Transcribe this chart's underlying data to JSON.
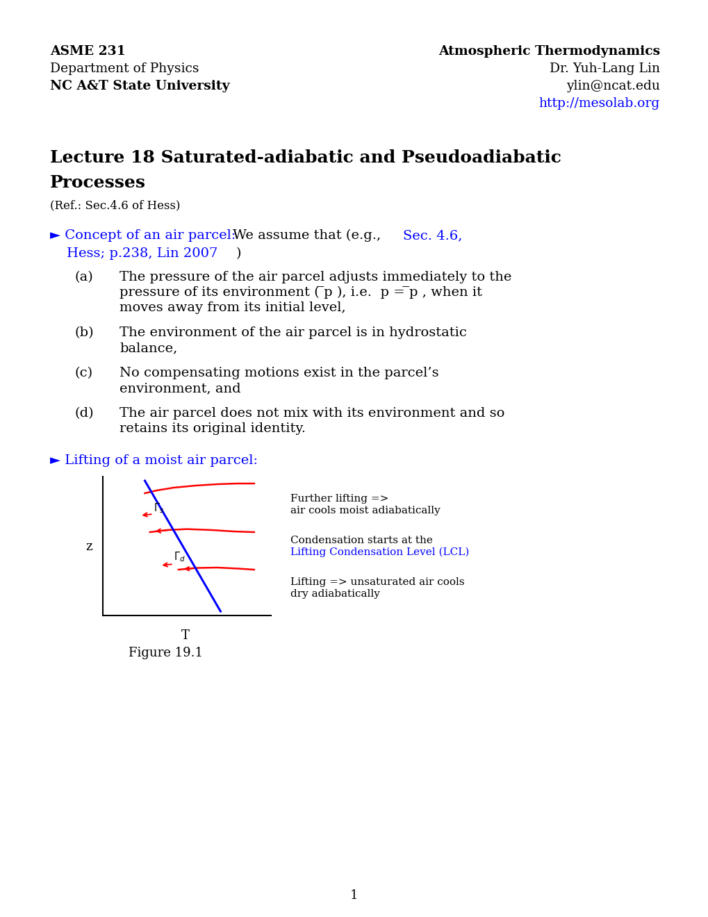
{
  "background_color": "#ffffff",
  "header_left": [
    "ASME 231",
    "Department of Physics",
    "NC A&T State University"
  ],
  "header_left_bold": [
    true,
    false,
    true
  ],
  "header_right": [
    "Atmospheric Thermodynamics",
    "Dr. Yuh-Lang Lin",
    "ylin@ncat.edu",
    "http://mesolab.org"
  ],
  "header_right_bold": [
    true,
    false,
    false,
    false
  ],
  "header_right_link": [
    false,
    false,
    false,
    true
  ],
  "blue_color": "#0000ff",
  "red_color": "#cc0000",
  "black_color": "#000000",
  "page_number": "1"
}
